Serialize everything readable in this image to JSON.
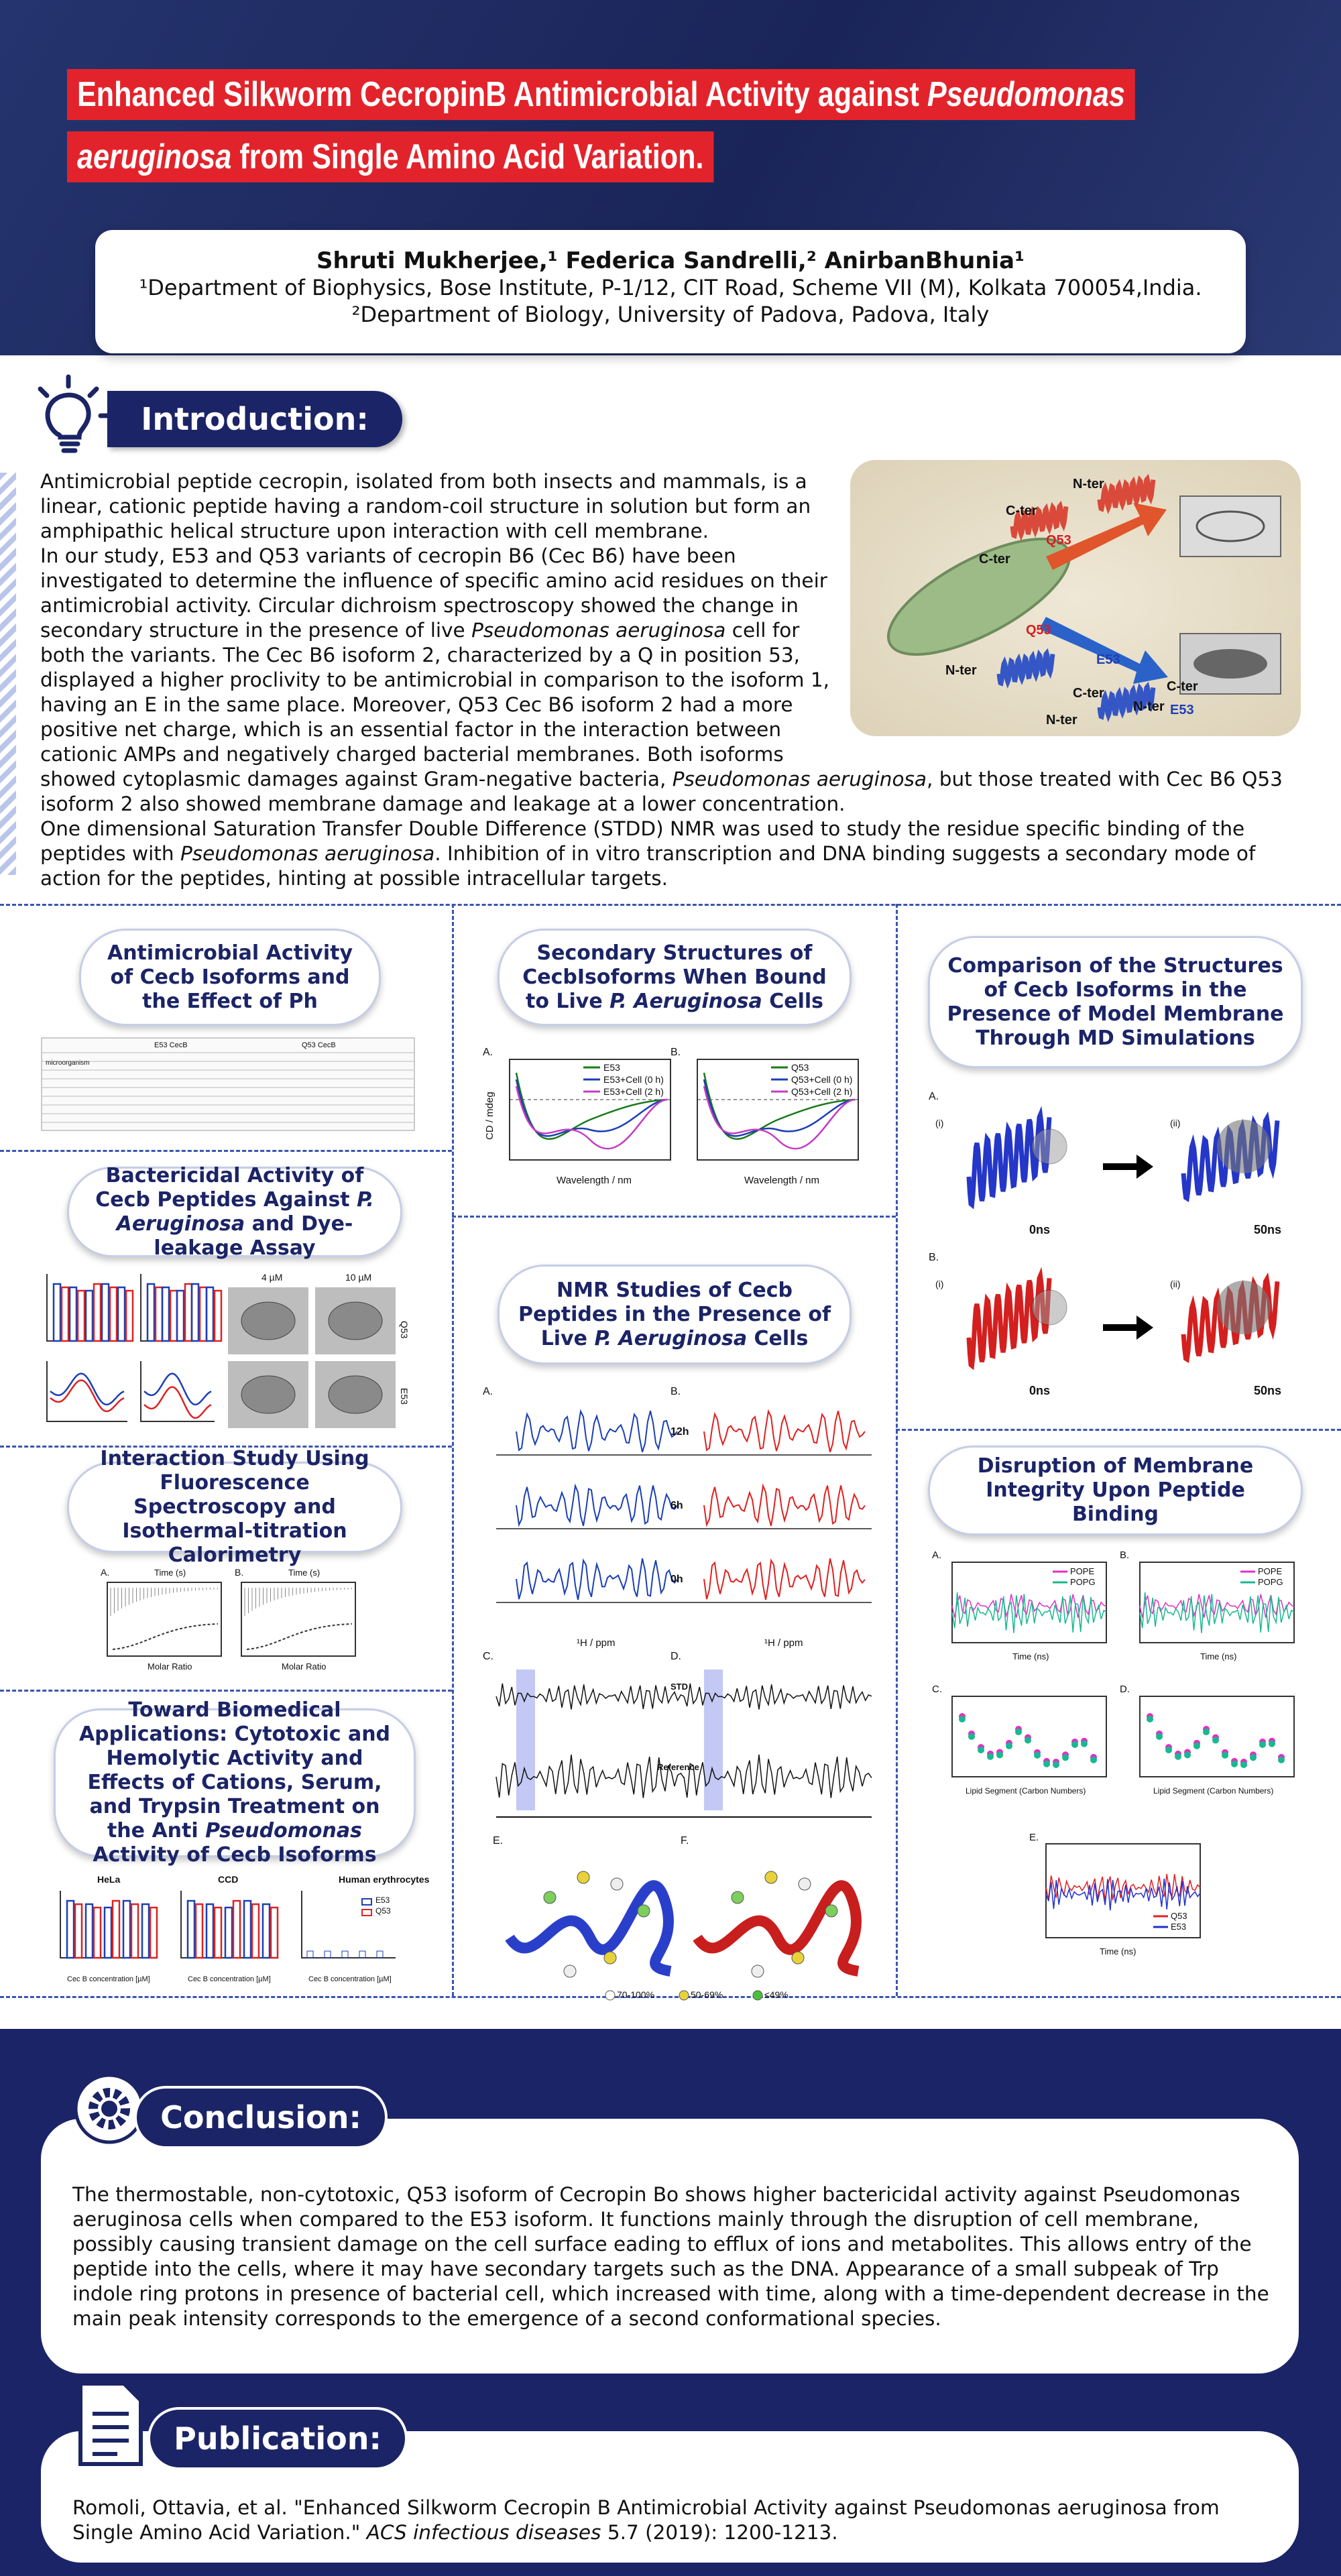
{
  "header": {
    "title_line1": [
      "Enhanced Silkworm CecropinB Antimicrobial Activity against ",
      {
        "text": "Pseudomonas",
        "italic": true
      }
    ],
    "title_line2": [
      {
        "text": "aeruginosa",
        "italic": true
      },
      " from Single Amino Acid Variation."
    ],
    "authors": "Shruti Mukherjee,¹ Federica Sandrelli,² AnirbanBhunia¹",
    "affiliations": [
      "¹Department of Biophysics, Bose Institute, P-1/12, CIT Road, Scheme VII (M), Kolkata 700054,India.",
      "²Department of Biology, University of Padova, Padova, Italy"
    ]
  },
  "introduction": {
    "heading": "Introduction:",
    "paragraphs": [
      [
        "Antimicrobial peptide cecropin, isolated from both insects and mammals, is a linear, cationic peptide having a random-coil structure in solution but form an amphipathic helical structure upon interaction with cell membrane."
      ],
      [
        "In our study, E53 and Q53 variants of cecropin B6 (Cec B6) have been investigated to determine the influence of specific amino acid residues on their antimicrobial activity. Circular dichroism spectroscopy showed the change in secondary structure in the presence of live ",
        {
          "text": "Pseudomonas aeruginosa",
          "italic": true
        },
        " cell for both the variants. The Cec B6 isoform 2, characterized by a Q in position 53, displayed a higher proclivity to be antimicrobial in comparison to the isoform 1, having an E in the same place. Moreover, Q53 Cec B6 isoform 2 had a more positive net charge, which is an essential factor in the interaction between cationic AMPs and negatively charged bacterial membranes. Both isoforms showed cytoplasmic damages against Gram-negative bacteria, ",
        {
          "text": "Pseudomonas aeruginosa",
          "italic": true
        },
        ", but those treated with Cec B6 Q53 isoform 2 also showed membrane damage and leakage at a lower concentration."
      ],
      [
        "One dimensional Saturation Transfer Double Difference (STDD) NMR was used to study the residue specific binding of the peptides with ",
        {
          "text": "Pseudomonas aeruginosa",
          "italic": true
        },
        ". Inhibition of in vitro transcription and DNA binding suggests a secondary mode of action for the peptides, hinting at possible intracellular targets."
      ]
    ],
    "figure_labels": [
      "C-ter",
      "N-ter",
      "Q53",
      "C-ter",
      "N-ter",
      "Q53",
      "C-ter",
      "N-ter",
      "E53",
      "C-ter",
      "N-ter",
      "E53"
    ]
  },
  "panels": [
    {
      "heading": [
        "Antimicrobial Activity of Cecb Isoforms and the Effect of Ph"
      ],
      "figure_labels": [
        "E53 CecB",
        "Q53 CecB",
        "microorganism"
      ]
    },
    {
      "heading": [
        "Bactericidal Activity of Cecb Peptides Against ",
        {
          "text": "P. Aeruginosa",
          "italic": true
        },
        " and Dye-leakage Assay"
      ],
      "figure_labels": [
        "4 µM",
        "10 µM",
        "Q53",
        "E53"
      ]
    },
    {
      "heading": [
        "Interaction Study Using Fluorescence Spectroscopy and Isothermal-titration Calorimetry"
      ],
      "figure_labels": [
        "A.",
        "B.",
        "Time (s)",
        "Time (s)",
        "Molar Ratio",
        "Molar Ratio"
      ]
    },
    {
      "heading": [
        "Toward Biomedical Applications: Cytotoxic and Hemolytic Activity and Effects of Cations, Serum, and Trypsin Treatment on the Anti ",
        {
          "text": "Pseudomonas",
          "italic": true
        },
        " Activity of Cecb Isoforms"
      ],
      "figure_labels": [
        "HeLa",
        "CCD",
        "Human erythrocytes",
        "E53",
        "Q53",
        "Cec B concentration [µM]",
        "Cec B concentration [µM]",
        "Cec B concentration [µM]"
      ]
    },
    {
      "heading": [
        "Secondary Structures of CecbIsoforms When Bound to Live ",
        {
          "text": "P. Aeruginosa",
          "italic": true
        },
        " Cells"
      ],
      "figure_labels": [
        "A.",
        "B.",
        "E53",
        "E53+Cell (0 h)",
        "E53+Cell (2 h)",
        "Q53",
        "Q53+Cell (0 h)",
        "Q53+Cell (2 h)",
        "Wavelength / nm",
        "Wavelength / nm",
        "CD / mdeg"
      ]
    },
    {
      "heading": [
        "NMR Studies of Cecb Peptides in the Presence of Live ",
        {
          "text": "P. Aeruginosa",
          "italic": true
        },
        " Cells"
      ],
      "figure_labels": [
        "A.",
        "B.",
        "12h",
        "6h",
        "0h",
        "¹H / ppm",
        "¹H / ppm",
        "C.",
        "D.",
        "STD",
        "Reference",
        "E.",
        "F.",
        "70-100%",
        "50-69%",
        "≤49%"
      ]
    },
    {
      "heading": [
        "Comparison of the Structures of Cecb Isoforms in the Presence of Model Membrane Through MD Simulations"
      ],
      "figure_labels": [
        "A.",
        "B.",
        "(i)",
        "(ii)",
        "(i)",
        "(ii)",
        "0ns",
        "50ns",
        "0ns",
        "50ns"
      ]
    },
    {
      "heading": [
        "Disruption of Membrane Integrity Upon Peptide Binding"
      ],
      "figure_labels": [
        "A.",
        "B.",
        "POPE",
        "POPG",
        "POPE",
        "POPG",
        "Time (ns)",
        "Time (ns)",
        "C.",
        "D.",
        "Lipid Segment (Carbon Numbers)",
        "Lipid Segment (Carbon Numbers)",
        "E.",
        "Q53",
        "E53",
        "Time (ns)"
      ]
    }
  ],
  "conclusion": {
    "heading": "Conclusion:",
    "text": "The thermostable, non-cytotoxic, Q53 isoform of Cecropin Bo shows higher bactericidal activity against Pseudomonas aeruginosa cells when compared to the E53 isoform. It functions mainly through the disruption of cell membrane, possibly causing transient damage on the cell surface eading to efflux of ions and metabolites. This allows entry of the peptide into the cells, where it may have secondary targets such as the DNA. Appearance of a small subpeak of Trp indole ring protons in presence of bacterial cell, which increased with time, along with a time-dependent decrease in the main peak intensity corresponds to the emergence of a second conformational species."
  },
  "publication": {
    "heading": "Publication:",
    "text": [
      "Romoli, Ottavia, et al. \"Enhanced Silkworm Cecropin B Antimicrobial Activity against Pseudomonas aeruginosa from Single Amino Acid Variation.\" ",
      {
        "text": "ACS infectious diseases",
        "italic": true
      },
      " 5.7 (2019): 1200-1213."
    ]
  }
}
